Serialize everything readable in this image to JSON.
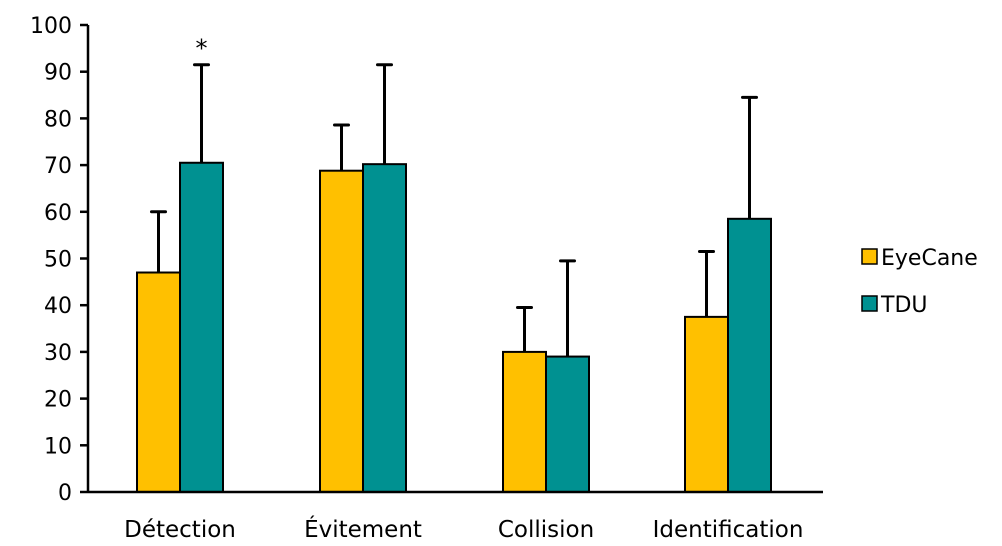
{
  "chart_data": {
    "type": "bar",
    "title": "",
    "xlabel": "",
    "ylabel": "",
    "categories": [
      "Détection",
      "Évitement",
      "Collision",
      "Identification"
    ],
    "series": [
      {
        "name": "EyeCane",
        "color": "#FFC000",
        "values": [
          47,
          68.8,
          30,
          37.5
        ],
        "error_upper": [
          13,
          9.8,
          9.5,
          14
        ]
      },
      {
        "name": "TDU",
        "color": "#009191",
        "values": [
          70.5,
          70.2,
          29,
          58.5
        ],
        "error_upper": [
          21,
          21.3,
          20.5,
          26
        ]
      }
    ],
    "ylim": [
      0,
      100
    ],
    "yticks": [
      0,
      10,
      20,
      30,
      40,
      50,
      60,
      70,
      80,
      90,
      100
    ],
    "grid": false,
    "legend_position": "right",
    "annotations": [
      {
        "text": "*",
        "category": "Détection",
        "series": "TDU"
      }
    ]
  }
}
